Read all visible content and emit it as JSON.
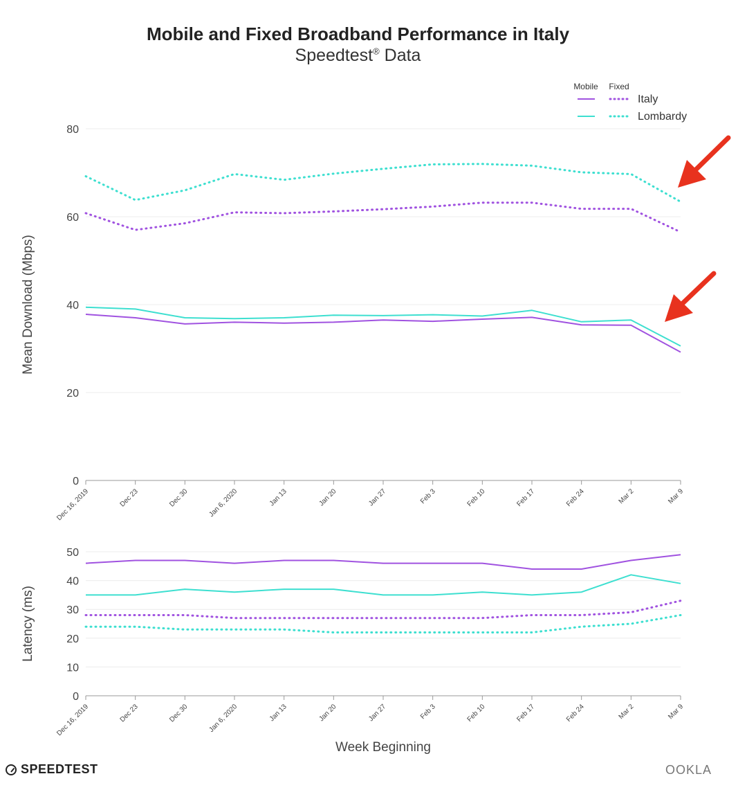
{
  "title": "Mobile and Fixed Broadband Performance in Italy",
  "subtitle": "Speedtest",
  "subtitle_mark": "®",
  "subtitle_suffix": " Data",
  "legend": {
    "mobile_header": "Mobile",
    "fixed_header": "Fixed",
    "rows": [
      "Italy",
      "Lombardy"
    ]
  },
  "colors": {
    "italy": "#a052e0",
    "lombardy": "#3ddfd0",
    "arrow": "#e8321e",
    "grid": "#ececec"
  },
  "branding": {
    "left": "SPEEDTEST",
    "right": "OOKLA"
  },
  "chart_data": [
    {
      "type": "line",
      "ylabel": "Mean Download (Mbps)",
      "xlabel": "",
      "ylim": [
        0,
        80
      ],
      "yticks": [
        0,
        20,
        40,
        60,
        80
      ],
      "grid": true,
      "legend_position": "top-right",
      "categories": [
        "Dec 16, 2019",
        "Dec 23",
        "Dec 30",
        "Jan 6, 2020",
        "Jan 13",
        "Jan 20",
        "Jan 27",
        "Feb 3",
        "Feb 10",
        "Feb 17",
        "Feb 24",
        "Mar 2",
        "Mar 9"
      ],
      "series": [
        {
          "name": "Italy",
          "kind": "Fixed",
          "color": "#a052e0",
          "style": "dotted",
          "values": [
            60.8,
            57.0,
            58.5,
            61.0,
            60.8,
            61.2,
            61.7,
            62.3,
            63.2,
            63.2,
            61.8,
            61.8,
            56.5
          ]
        },
        {
          "name": "Lombardy",
          "kind": "Fixed",
          "color": "#3ddfd0",
          "style": "dotted",
          "values": [
            69.2,
            63.8,
            66.0,
            69.7,
            68.4,
            69.8,
            70.9,
            71.9,
            72.0,
            71.6,
            70.1,
            69.7,
            63.4
          ]
        },
        {
          "name": "Italy",
          "kind": "Mobile",
          "color": "#a052e0",
          "style": "solid",
          "values": [
            37.8,
            37.0,
            35.6,
            36.0,
            35.8,
            36.0,
            36.5,
            36.2,
            36.7,
            37.1,
            35.4,
            35.3,
            29.2
          ]
        },
        {
          "name": "Lombardy",
          "kind": "Mobile",
          "color": "#3ddfd0",
          "style": "solid",
          "values": [
            39.4,
            39.0,
            37.0,
            36.8,
            37.0,
            37.6,
            37.5,
            37.7,
            37.4,
            38.7,
            36.1,
            36.5,
            30.6
          ]
        }
      ],
      "annotations": [
        "arrow pointing to Fixed decline on Mar 9",
        "arrow pointing to Mobile decline on Mar 9"
      ]
    },
    {
      "type": "line",
      "ylabel": "Latency (ms)",
      "xlabel": "Week Beginning",
      "ylim": [
        0,
        50
      ],
      "yticks": [
        0,
        10,
        20,
        30,
        40,
        50
      ],
      "grid": true,
      "categories": [
        "Dec 16, 2019",
        "Dec 23",
        "Dec 30",
        "Jan 6, 2020",
        "Jan 13",
        "Jan 20",
        "Jan 27",
        "Feb 3",
        "Feb 10",
        "Feb 17",
        "Feb 24",
        "Mar 2",
        "Mar 9"
      ],
      "series": [
        {
          "name": "Italy",
          "kind": "Mobile",
          "color": "#a052e0",
          "style": "solid",
          "values": [
            46,
            47,
            47,
            46,
            47,
            47,
            46,
            46,
            46,
            44,
            44,
            47,
            49
          ]
        },
        {
          "name": "Lombardy",
          "kind": "Mobile",
          "color": "#3ddfd0",
          "style": "solid",
          "values": [
            35,
            35,
            37,
            36,
            37,
            37,
            35,
            35,
            36,
            35,
            36,
            42,
            39
          ]
        },
        {
          "name": "Italy",
          "kind": "Fixed",
          "color": "#a052e0",
          "style": "dotted",
          "values": [
            28,
            28,
            28,
            27,
            27,
            27,
            27,
            27,
            27,
            28,
            28,
            29,
            33
          ]
        },
        {
          "name": "Lombardy",
          "kind": "Fixed",
          "color": "#3ddfd0",
          "style": "dotted",
          "values": [
            24,
            24,
            23,
            23,
            23,
            22,
            22,
            22,
            22,
            22,
            24,
            25,
            28
          ]
        }
      ]
    }
  ]
}
